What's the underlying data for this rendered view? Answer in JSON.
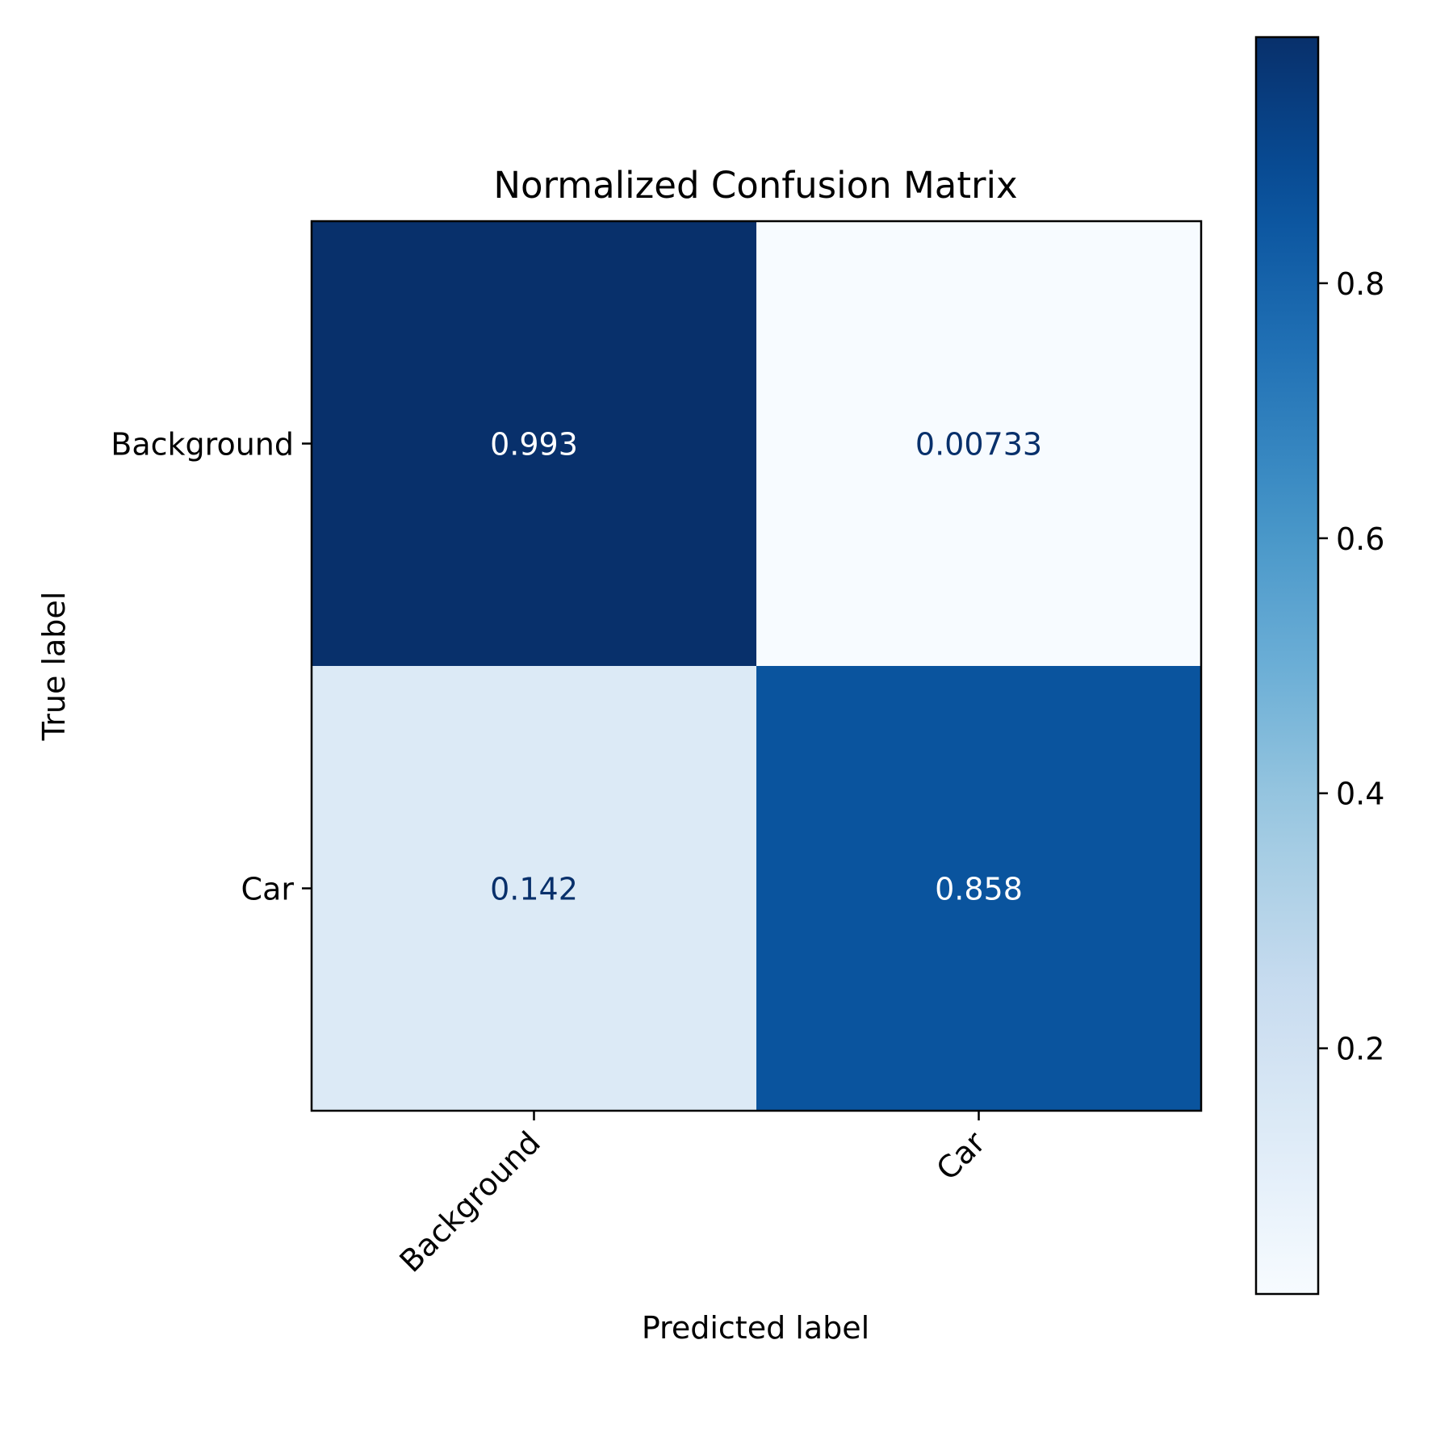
{
  "chart_data": {
    "type": "heatmap",
    "title": "Normalized Confusion Matrix",
    "xlabel": "Predicted label",
    "ylabel": "True label",
    "x_categories": [
      "Background",
      "Car"
    ],
    "y_categories": [
      "Background",
      "Car"
    ],
    "values": [
      [
        0.993,
        0.00733
      ],
      [
        0.142,
        0.858
      ]
    ],
    "cell_labels": [
      [
        "0.993",
        "0.00733"
      ],
      [
        "0.142",
        "0.858"
      ]
    ],
    "colormap": "Blues",
    "colorbar": {
      "range": [
        0.00733,
        0.993
      ],
      "ticks": [
        0.2,
        0.4,
        0.6,
        0.8
      ],
      "tick_labels": [
        "0.2",
        "0.4",
        "0.6",
        "0.8"
      ]
    },
    "colors": {
      "text_on_dark": "#ffffff",
      "text_on_light": "#08306b",
      "axis": "#000000"
    }
  }
}
